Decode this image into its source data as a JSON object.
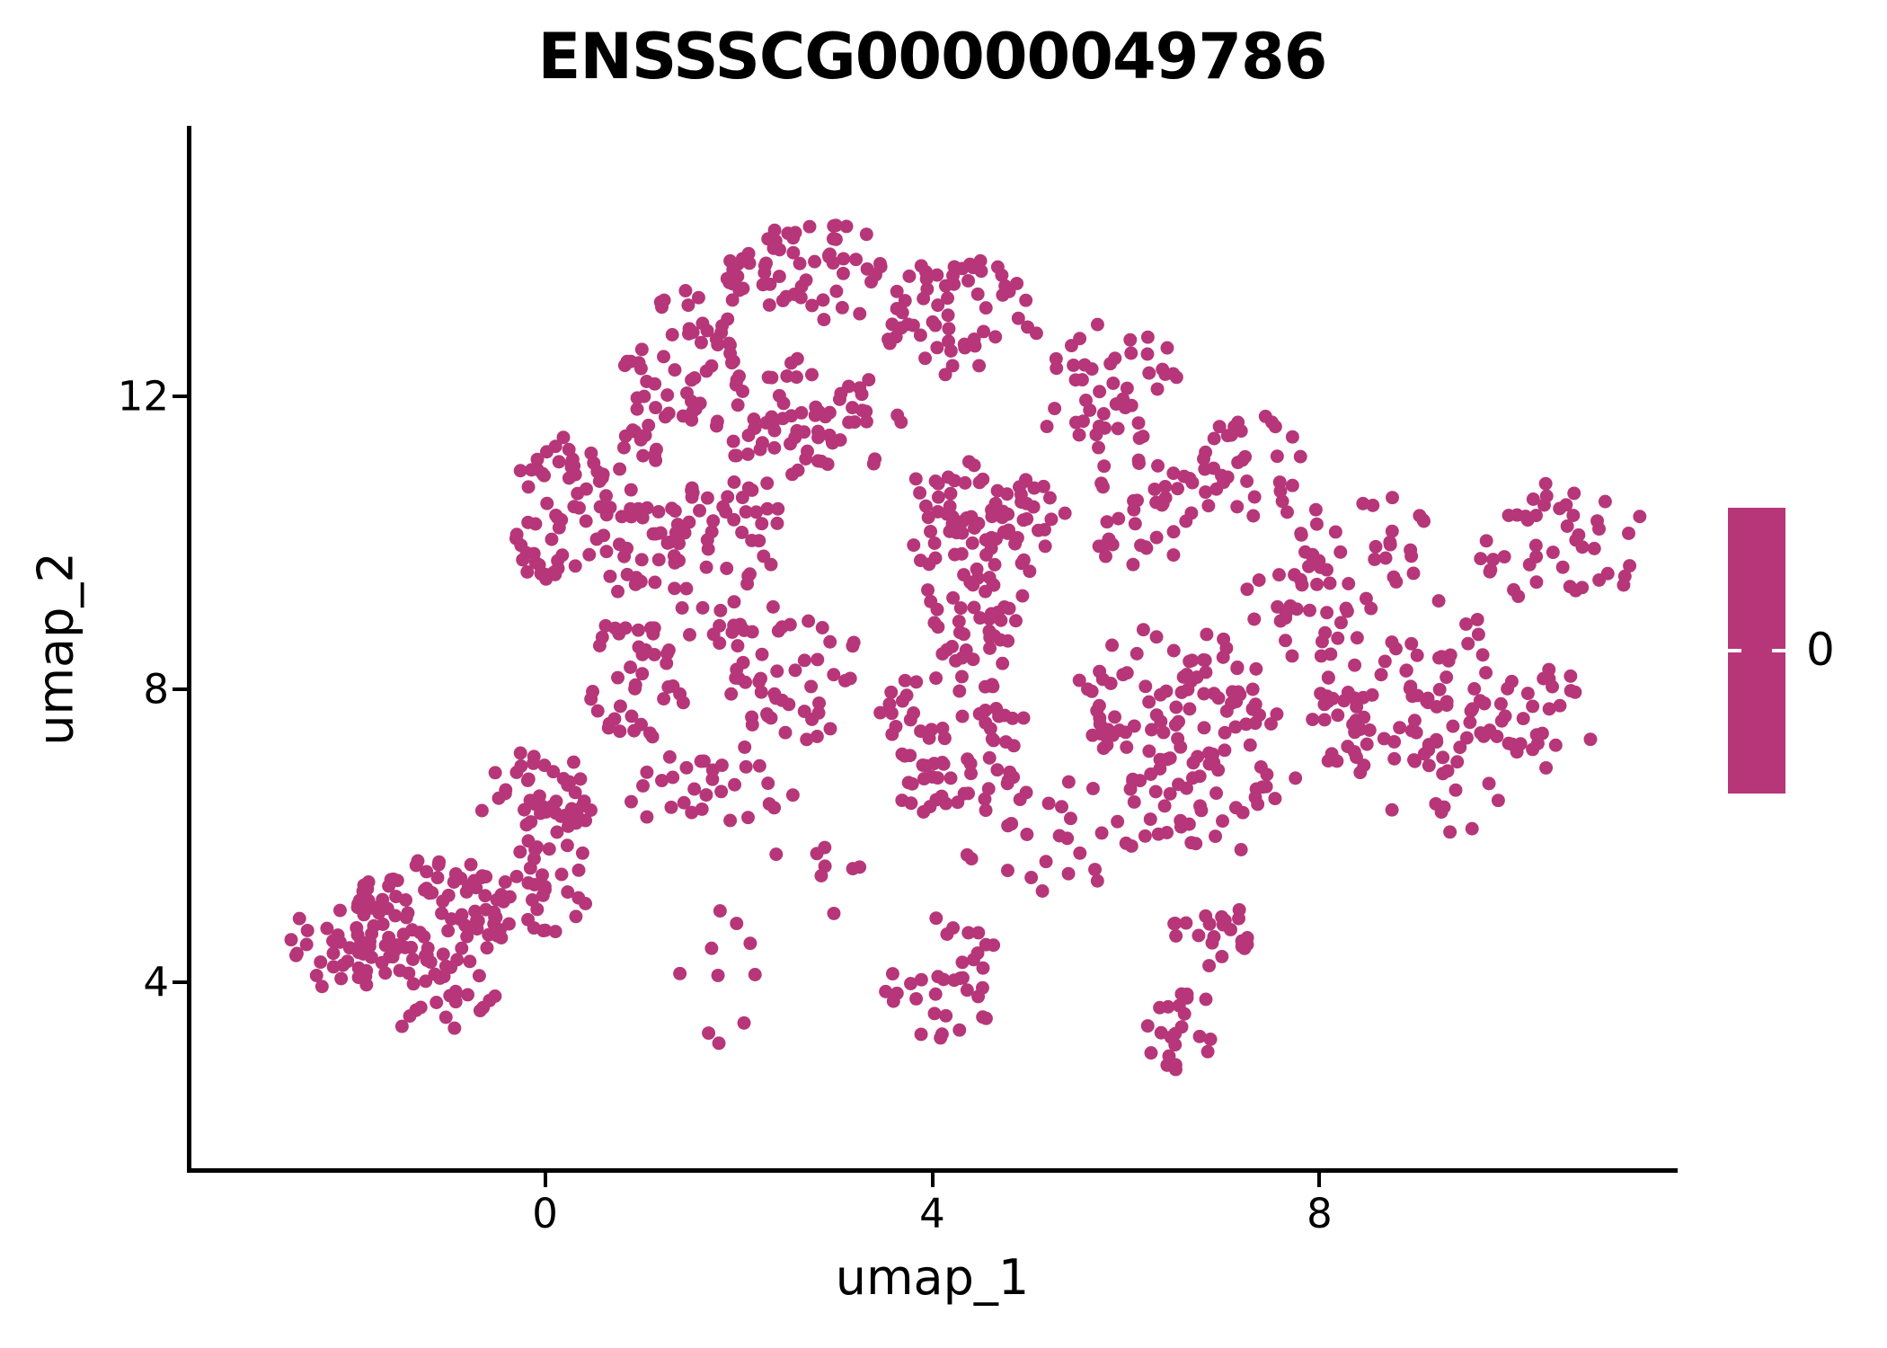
{
  "chart_data": {
    "type": "scatter",
    "title": "ENSSSCG00000049786",
    "xlabel": "umap_1",
    "ylabel": "umap_2",
    "xlim": [
      -3.7,
      11.7
    ],
    "ylim": [
      1.4,
      15.7
    ],
    "xticks": [
      0,
      4,
      8
    ],
    "yticks": [
      4,
      8,
      12
    ],
    "grid": false,
    "point_color": "#b63679",
    "point_radius_px": 7.5,
    "n_points_approx": 1600,
    "prng_seed": 7,
    "points_encoding": "UMAP point cloud approximated as ellipse clusters; cx,cy = center and rx,ry = radii in data units, n = number of cells sampled uniformly inside each ellipse",
    "clusters": [
      {
        "cx": 0.11,
        "cy": 10.4,
        "rx": 0.51,
        "ry": 1.04,
        "n": 55
      },
      {
        "cx": 0.86,
        "cy": 10.52,
        "rx": 0.47,
        "ry": 1.35,
        "n": 50
      },
      {
        "cx": 1.41,
        "cy": 12.48,
        "rx": 0.65,
        "ry": 0.92,
        "n": 55
      },
      {
        "cx": 2.62,
        "cy": 13.7,
        "rx": 0.84,
        "ry": 0.67,
        "n": 65
      },
      {
        "cx": 4.2,
        "cy": 13.09,
        "rx": 0.84,
        "ry": 0.8,
        "n": 60
      },
      {
        "cx": 2.72,
        "cy": 11.62,
        "rx": 0.93,
        "ry": 0.86,
        "n": 70
      },
      {
        "cx": 5.79,
        "cy": 12.11,
        "rx": 0.79,
        "ry": 0.8,
        "n": 45
      },
      {
        "cx": 4.48,
        "cy": 10.27,
        "rx": 0.79,
        "ry": 0.8,
        "n": 80
      },
      {
        "cx": 1.79,
        "cy": 9.78,
        "rx": 0.65,
        "ry": 1.1,
        "n": 60
      },
      {
        "cx": 4.39,
        "cy": 8.93,
        "rx": 0.56,
        "ry": 0.73,
        "n": 40
      },
      {
        "cx": 6.16,
        "cy": 10.52,
        "rx": 0.74,
        "ry": 0.86,
        "n": 40
      },
      {
        "cx": 7.27,
        "cy": 11.01,
        "rx": 0.65,
        "ry": 0.73,
        "n": 35
      },
      {
        "cx": 8.48,
        "cy": 10.03,
        "rx": 0.74,
        "ry": 0.67,
        "n": 30
      },
      {
        "cx": 10.53,
        "cy": 10.03,
        "rx": 0.93,
        "ry": 0.86,
        "n": 45
      },
      {
        "cx": 0.86,
        "cy": 8.07,
        "rx": 0.56,
        "ry": 0.86,
        "n": 40
      },
      {
        "cx": 2.53,
        "cy": 8.07,
        "rx": 0.74,
        "ry": 0.86,
        "n": 45
      },
      {
        "cx": 4.11,
        "cy": 7.58,
        "rx": 0.84,
        "ry": 0.73,
        "n": 45
      },
      {
        "cx": 6.44,
        "cy": 7.83,
        "rx": 1.12,
        "ry": 0.98,
        "n": 90
      },
      {
        "cx": 8.86,
        "cy": 7.7,
        "rx": 1.12,
        "ry": 0.98,
        "n": 90
      },
      {
        "cx": 10.25,
        "cy": 7.58,
        "rx": 0.56,
        "ry": 0.73,
        "n": 30
      },
      {
        "cx": 7.83,
        "cy": 9.05,
        "rx": 0.74,
        "ry": 0.61,
        "n": 30
      },
      {
        "cx": 4.58,
        "cy": 6.48,
        "rx": 1.12,
        "ry": 0.55,
        "n": 40
      },
      {
        "cx": 6.9,
        "cy": 6.6,
        "rx": 0.93,
        "ry": 0.49,
        "n": 35
      },
      {
        "cx": 1.69,
        "cy": 6.6,
        "rx": 0.93,
        "ry": 0.55,
        "n": 30
      },
      {
        "cx": 6.72,
        "cy": 5.99,
        "rx": 1.02,
        "ry": 0.24,
        "n": 16
      },
      {
        "cx": 5.04,
        "cy": 5.62,
        "rx": 0.84,
        "ry": 0.49,
        "n": 12
      },
      {
        "cx": -1.19,
        "cy": 4.89,
        "rx": 0.88,
        "ry": 0.92,
        "n": 115
      },
      {
        "cx": -2.17,
        "cy": 4.4,
        "rx": 0.47,
        "ry": 0.61,
        "n": 30
      },
      {
        "cx": -0.07,
        "cy": 6.48,
        "rx": 0.6,
        "ry": 0.61,
        "n": 45
      },
      {
        "cx": -1.0,
        "cy": 3.66,
        "rx": 0.6,
        "ry": 0.43,
        "n": 22
      },
      {
        "cx": 0.02,
        "cy": 5.26,
        "rx": 0.47,
        "ry": 0.73,
        "n": 30
      },
      {
        "cx": 1.79,
        "cy": 4.03,
        "rx": 0.51,
        "ry": 0.92,
        "n": 10
      },
      {
        "cx": 4.11,
        "cy": 4.03,
        "rx": 0.6,
        "ry": 0.92,
        "n": 35
      },
      {
        "cx": 6.9,
        "cy": 4.55,
        "rx": 0.51,
        "ry": 0.43,
        "n": 22
      },
      {
        "cx": 6.53,
        "cy": 3.3,
        "rx": 0.42,
        "ry": 0.55,
        "n": 22
      },
      {
        "cx": 9.23,
        "cy": 6.36,
        "rx": 0.65,
        "ry": 0.49,
        "n": 10
      },
      {
        "cx": 9.41,
        "cy": 8.81,
        "rx": 0.47,
        "ry": 0.49,
        "n": 6
      },
      {
        "cx": 2.72,
        "cy": 5.38,
        "rx": 0.56,
        "ry": 0.49,
        "n": 8
      }
    ],
    "legend": {
      "type": "colorbar",
      "label": "0",
      "colorbar_color": "#b63679",
      "tick_color": "#ffffff",
      "position": "right"
    }
  },
  "colors": {
    "accent": "#b63679",
    "axis": "#000000",
    "background": "#ffffff",
    "text": "#000000"
  }
}
